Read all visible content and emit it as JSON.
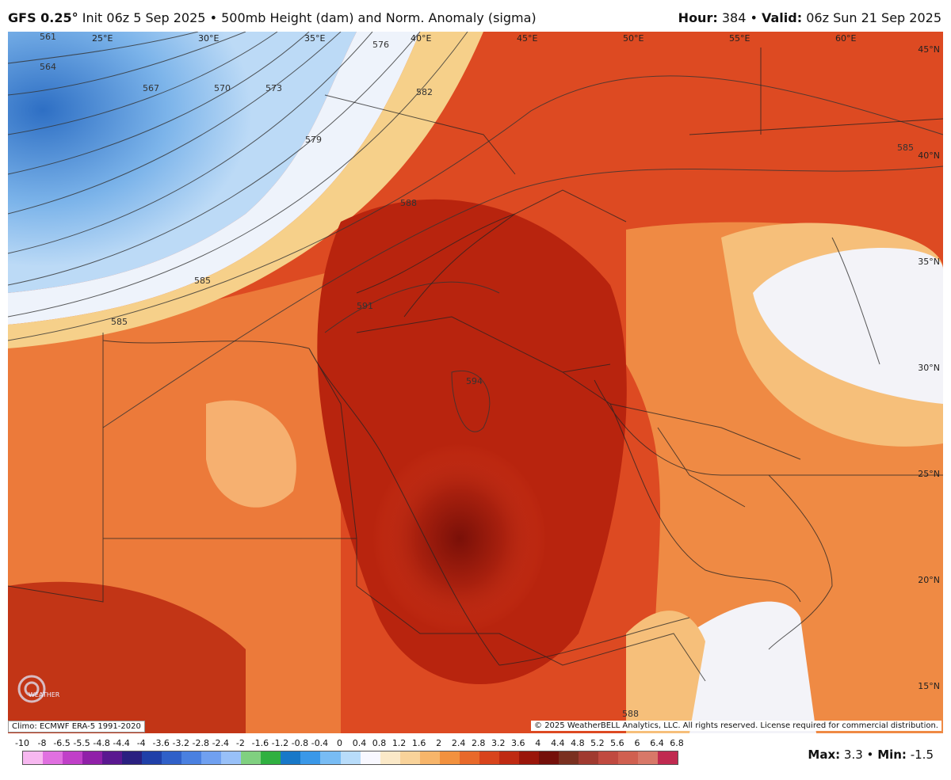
{
  "header": {
    "model": "GFS 0.25°",
    "init": "Init 06z 5 Sep 2025",
    "field": "500mb Height (dam) and Norm. Anomaly (sigma)",
    "hour_label": "Hour:",
    "hour_value": "384",
    "valid_label": "Valid:",
    "valid_value": "06z Sun 21 Sep 2025"
  },
  "map": {
    "longitudes": [
      "25°E",
      "30°E",
      "35°E",
      "40°E",
      "45°E",
      "50°E",
      "55°E",
      "60°E"
    ],
    "latitudes": [
      "45°N",
      "40°N",
      "35°N",
      "30°N",
      "25°N",
      "20°N",
      "15°N"
    ],
    "contour_labels": [
      "561",
      "564",
      "567",
      "570",
      "573",
      "576",
      "579",
      "582",
      "585",
      "585",
      "588",
      "591",
      "594",
      "585",
      "588"
    ],
    "colors": {
      "strong_pos": "#7a1008",
      "pos": "#d33a1c",
      "warm": "#f0823a",
      "light_warm": "#f7c27a",
      "neutral": "#f3f3f8",
      "cool": "#9cc8ee",
      "cold": "#4a8fd8"
    }
  },
  "footer": {
    "climo": "Climo: ECMWF ERA-5 1991-2020",
    "copyright": "© 2025 WeatherBELL Analytics, LLC. All rights reserved. License required for commercial distribution.",
    "logo_text": "WEATHER",
    "max_label": "Max:",
    "max_value": "3.3",
    "min_label": "Min:",
    "min_value": "-1.5"
  },
  "colorbar": {
    "ticks": [
      "-10",
      "-8",
      "-6.5",
      "-5.5",
      "-4.8",
      "-4.4",
      "-4",
      "-3.6",
      "-3.2",
      "-2.8",
      "-2.4",
      "-2",
      "-1.6",
      "-1.2",
      "-0.8",
      "-0.4",
      "0",
      "0.4",
      "0.8",
      "1.2",
      "1.6",
      "2",
      "2.4",
      "2.8",
      "3.2",
      "3.6",
      "4",
      "4.4",
      "4.8",
      "5.2",
      "5.6",
      "6",
      "6.4",
      "6.8"
    ],
    "colors": [
      "#f7b8f0",
      "#e070e0",
      "#c040c8",
      "#9020a8",
      "#5a1890",
      "#2a2080",
      "#2040a8",
      "#3060c8",
      "#4a80e0",
      "#70a0f0",
      "#98c0f8",
      "#80d080",
      "#30b040",
      "#1878c8",
      "#3a98e8",
      "#78bcf4",
      "#b8dcfa",
      "#f8f8ff",
      "#fbe9c8",
      "#f9d39a",
      "#f7b56a",
      "#f2913e",
      "#e8692a",
      "#d8441c",
      "#bf2a12",
      "#9a160a",
      "#74100a",
      "#7a3020",
      "#a03a30",
      "#c04a40",
      "#d06050",
      "#d87868",
      "#c02a50"
    ]
  }
}
